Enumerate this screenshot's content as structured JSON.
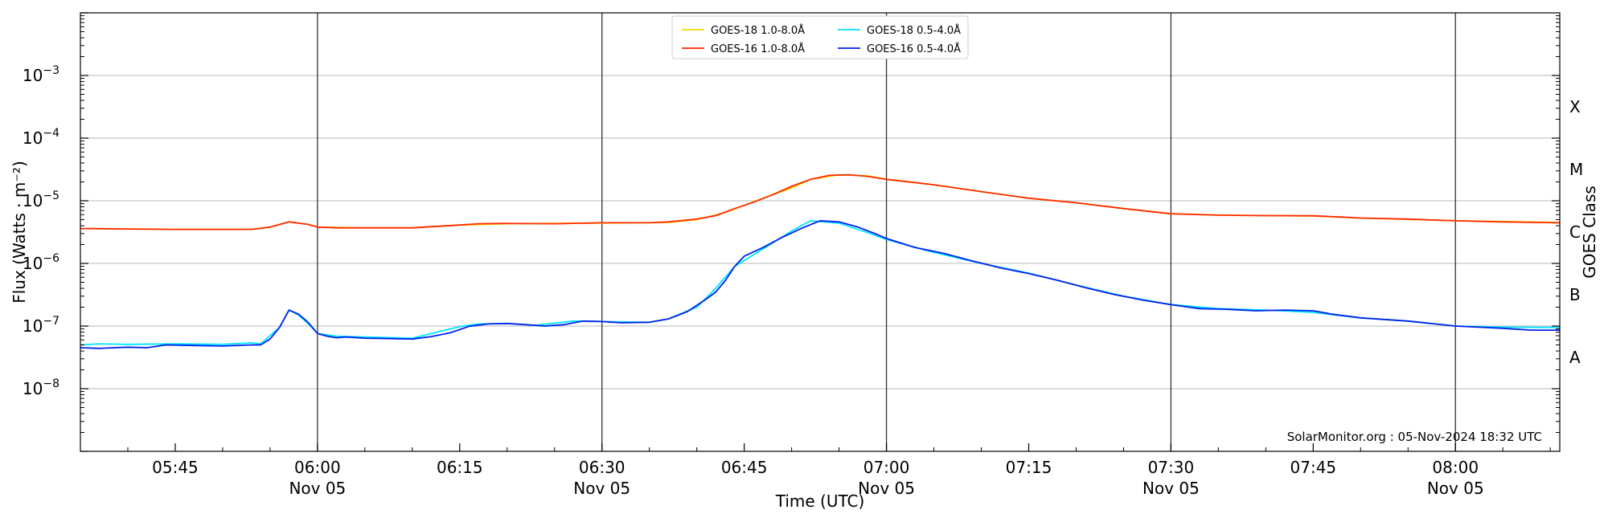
{
  "chart_data": {
    "type": "line",
    "xlabel": "Time (UTC)",
    "ylabel": "Flux (Watts · m⁻²)",
    "right_label": "GOES Class",
    "y_scale": "log",
    "ylim": [
      1e-09,
      0.01
    ],
    "xlim": [
      "05:35",
      "08:11"
    ],
    "y_ticks": [
      {
        "value": 1e-08,
        "base": "10",
        "exp": "−8"
      },
      {
        "value": 1e-07,
        "base": "10",
        "exp": "−7"
      },
      {
        "value": 1e-06,
        "base": "10",
        "exp": "−6"
      },
      {
        "value": 1e-05,
        "base": "10",
        "exp": "−5"
      },
      {
        "value": 0.0001,
        "base": "10",
        "exp": "−4"
      },
      {
        "value": 0.001,
        "base": "10",
        "exp": "−3"
      }
    ],
    "x_ticks": [
      {
        "time": "05:45",
        "label": "05:45",
        "date": ""
      },
      {
        "time": "06:00",
        "label": "06:00",
        "date": "Nov 05"
      },
      {
        "time": "06:15",
        "label": "06:15",
        "date": ""
      },
      {
        "time": "06:30",
        "label": "06:30",
        "date": "Nov 05"
      },
      {
        "time": "06:45",
        "label": "06:45",
        "date": ""
      },
      {
        "time": "07:00",
        "label": "07:00",
        "date": "Nov 05"
      },
      {
        "time": "07:15",
        "label": "07:15",
        "date": ""
      },
      {
        "time": "07:30",
        "label": "07:30",
        "date": "Nov 05"
      },
      {
        "time": "07:45",
        "label": "07:45",
        "date": ""
      },
      {
        "time": "08:00",
        "label": "08:00",
        "date": "Nov 05"
      }
    ],
    "vertical_lines": [
      "06:00",
      "06:30",
      "07:00",
      "07:30",
      "08:00"
    ],
    "goes_classes": [
      {
        "label": "X",
        "value": 0.000316
      },
      {
        "label": "M",
        "value": 3.16e-05
      },
      {
        "label": "C",
        "value": 3.16e-06
      },
      {
        "label": "B",
        "value": 3.16e-07
      },
      {
        "label": "A",
        "value": 3.16e-08
      }
    ],
    "grid": true,
    "legend_position": "top-center",
    "credit": "SolarMonitor.org : 05-Nov-2024 18:32 UTC",
    "series": [
      {
        "name": "GOES-18 1.0-8.0Å",
        "color": "#ffd700",
        "points": [
          [
            "05:35",
            3.6e-06
          ],
          [
            "05:45",
            3.5e-06
          ],
          [
            "05:53",
            3.5e-06
          ],
          [
            "05:55",
            3.8e-06
          ],
          [
            "05:57",
            4.6e-06
          ],
          [
            "05:59",
            4.2e-06
          ],
          [
            "06:00",
            3.8e-06
          ],
          [
            "06:05",
            3.7e-06
          ],
          [
            "06:10",
            3.7e-06
          ],
          [
            "06:15",
            4.1e-06
          ],
          [
            "06:20",
            4.3e-06
          ],
          [
            "06:30",
            4.4e-06
          ],
          [
            "06:37",
            4.5e-06
          ],
          [
            "06:40",
            5e-06
          ],
          [
            "06:43",
            6.5e-06
          ],
          [
            "06:47",
            1.1e-05
          ],
          [
            "06:50",
            1.6e-05
          ],
          [
            "06:52",
            2.2e-05
          ],
          [
            "06:55",
            2.6e-05
          ],
          [
            "06:58",
            2.5e-05
          ],
          [
            "07:00",
            2.2e-05
          ],
          [
            "07:05",
            1.8e-05
          ],
          [
            "07:10",
            1.4e-05
          ],
          [
            "07:15",
            1.1e-05
          ],
          [
            "07:20",
            9.3e-06
          ],
          [
            "07:25",
            7.5e-06
          ],
          [
            "07:30",
            6.2e-06
          ],
          [
            "07:35",
            5.9e-06
          ],
          [
            "07:40",
            5.8e-06
          ],
          [
            "07:45",
            5.7e-06
          ],
          [
            "07:50",
            5.3e-06
          ],
          [
            "08:00",
            4.8e-06
          ],
          [
            "08:11",
            4.5e-06
          ]
        ]
      },
      {
        "name": "GOES-18 0.5-4.0Å",
        "color": "#00e5ff",
        "points": [
          [
            "05:35",
            5e-08
          ],
          [
            "05:37",
            5.2e-08
          ],
          [
            "05:40",
            5.1e-08
          ],
          [
            "05:45",
            5.2e-08
          ],
          [
            "05:50",
            5.1e-08
          ],
          [
            "05:53",
            5.4e-08
          ],
          [
            "05:54",
            5.2e-08
          ],
          [
            "05:56",
            9.5e-08
          ],
          [
            "05:57",
            1.8e-07
          ],
          [
            "05:58",
            1.5e-07
          ],
          [
            "05:59",
            1.1e-07
          ],
          [
            "06:00",
            7.6e-08
          ],
          [
            "06:02",
            6.9e-08
          ],
          [
            "06:05",
            6.7e-08
          ],
          [
            "06:10",
            6.4e-08
          ],
          [
            "06:15",
            9.8e-08
          ],
          [
            "06:17",
            1.08e-07
          ],
          [
            "06:20",
            1.1e-07
          ],
          [
            "06:23",
            1.03e-07
          ],
          [
            "06:27",
            1.2e-07
          ],
          [
            "06:30",
            1.18e-07
          ],
          [
            "06:35",
            1.15e-07
          ],
          [
            "06:37",
            1.3e-07
          ],
          [
            "06:40",
            2e-07
          ],
          [
            "06:42",
            4e-07
          ],
          [
            "06:44",
            9e-07
          ],
          [
            "06:47",
            1.7e-06
          ],
          [
            "06:50",
            3.3e-06
          ],
          [
            "06:52",
            4.8e-06
          ],
          [
            "06:55",
            4.4e-06
          ],
          [
            "06:58",
            3.1e-06
          ],
          [
            "07:00",
            2.4e-06
          ],
          [
            "07:05",
            1.5e-06
          ],
          [
            "07:10",
            1e-06
          ],
          [
            "07:15",
            7e-07
          ],
          [
            "07:20",
            4.5e-07
          ],
          [
            "07:25",
            3e-07
          ],
          [
            "07:30",
            2.2e-07
          ],
          [
            "07:35",
            1.9e-07
          ],
          [
            "07:40",
            1.8e-07
          ],
          [
            "07:45",
            1.65e-07
          ],
          [
            "07:50",
            1.35e-07
          ],
          [
            "07:55",
            1.2e-07
          ],
          [
            "08:00",
            1e-07
          ],
          [
            "08:05",
            9.6e-08
          ],
          [
            "08:11",
            9.5e-08
          ]
        ]
      },
      {
        "name": "GOES-16 1.0-8.0Å",
        "color": "#ff2a00",
        "points": [
          [
            "05:35",
            3.6e-06
          ],
          [
            "05:40",
            3.55e-06
          ],
          [
            "05:45",
            3.5e-06
          ],
          [
            "05:50",
            3.5e-06
          ],
          [
            "05:53",
            3.5e-06
          ],
          [
            "05:55",
            3.8e-06
          ],
          [
            "05:57",
            4.6e-06
          ],
          [
            "05:59",
            4.2e-06
          ],
          [
            "06:00",
            3.8e-06
          ],
          [
            "06:02",
            3.7e-06
          ],
          [
            "06:05",
            3.7e-06
          ],
          [
            "06:10",
            3.7e-06
          ],
          [
            "06:15",
            4.1e-06
          ],
          [
            "06:17",
            4.3e-06
          ],
          [
            "06:20",
            4.35e-06
          ],
          [
            "06:25",
            4.3e-06
          ],
          [
            "06:30",
            4.45e-06
          ],
          [
            "06:35",
            4.45e-06
          ],
          [
            "06:37",
            4.6e-06
          ],
          [
            "06:40",
            5.1e-06
          ],
          [
            "06:42",
            5.8e-06
          ],
          [
            "06:44",
            7.5e-06
          ],
          [
            "06:46",
            9.5e-06
          ],
          [
            "06:48",
            1.25e-05
          ],
          [
            "06:50",
            1.7e-05
          ],
          [
            "06:52",
            2.2e-05
          ],
          [
            "06:54",
            2.55e-05
          ],
          [
            "06:56",
            2.6e-05
          ],
          [
            "06:58",
            2.45e-05
          ],
          [
            "07:00",
            2.2e-05
          ],
          [
            "07:05",
            1.8e-05
          ],
          [
            "07:10",
            1.4e-05
          ],
          [
            "07:15",
            1.1e-05
          ],
          [
            "07:20",
            9.3e-06
          ],
          [
            "07:25",
            7.5e-06
          ],
          [
            "07:30",
            6.2e-06
          ],
          [
            "07:35",
            5.9e-06
          ],
          [
            "07:40",
            5.8e-06
          ],
          [
            "07:45",
            5.75e-06
          ],
          [
            "07:48",
            5.5e-06
          ],
          [
            "07:50",
            5.3e-06
          ],
          [
            "07:55",
            5.1e-06
          ],
          [
            "08:00",
            4.8e-06
          ],
          [
            "08:05",
            4.6e-06
          ],
          [
            "08:11",
            4.45e-06
          ]
        ]
      },
      {
        "name": "GOES-16 0.5-4.0Å",
        "color": "#0022ee",
        "points": [
          [
            "05:35",
            4.5e-08
          ],
          [
            "05:37",
            4.4e-08
          ],
          [
            "05:40",
            4.6e-08
          ],
          [
            "05:42",
            4.5e-08
          ],
          [
            "05:44",
            5e-08
          ],
          [
            "05:47",
            4.9e-08
          ],
          [
            "05:50",
            4.8e-08
          ],
          [
            "05:53",
            5e-08
          ],
          [
            "05:54",
            5e-08
          ],
          [
            "05:55",
            6.2e-08
          ],
          [
            "05:56",
            9.5e-08
          ],
          [
            "05:57",
            1.8e-07
          ],
          [
            "05:58",
            1.55e-07
          ],
          [
            "05:59",
            1.15e-07
          ],
          [
            "06:00",
            7.6e-08
          ],
          [
            "06:01",
            6.9e-08
          ],
          [
            "06:02",
            6.5e-08
          ],
          [
            "06:03",
            6.7e-08
          ],
          [
            "06:05",
            6.4e-08
          ],
          [
            "06:08",
            6.3e-08
          ],
          [
            "06:10",
            6.2e-08
          ],
          [
            "06:12",
            6.8e-08
          ],
          [
            "06:14",
            7.8e-08
          ],
          [
            "06:16",
            9.9e-08
          ],
          [
            "06:18",
            1.08e-07
          ],
          [
            "06:20",
            1.1e-07
          ],
          [
            "06:22",
            1.05e-07
          ],
          [
            "06:24",
            1e-07
          ],
          [
            "06:26",
            1.05e-07
          ],
          [
            "06:28",
            1.2e-07
          ],
          [
            "06:30",
            1.18e-07
          ],
          [
            "06:32",
            1.13e-07
          ],
          [
            "06:35",
            1.15e-07
          ],
          [
            "06:37",
            1.3e-07
          ],
          [
            "06:39",
            1.7e-07
          ],
          [
            "06:41",
            2.7e-07
          ],
          [
            "06:42",
            3.5e-07
          ],
          [
            "06:43",
            5.3e-07
          ],
          [
            "06:44",
            9e-07
          ],
          [
            "06:45",
            1.3e-06
          ],
          [
            "06:47",
            1.8e-06
          ],
          [
            "06:49",
            2.6e-06
          ],
          [
            "06:51",
            3.6e-06
          ],
          [
            "06:53",
            4.8e-06
          ],
          [
            "06:55",
            4.6e-06
          ],
          [
            "06:57",
            3.8e-06
          ],
          [
            "06:59",
            2.9e-06
          ],
          [
            "07:00",
            2.5e-06
          ],
          [
            "07:03",
            1.8e-06
          ],
          [
            "07:06",
            1.45e-06
          ],
          [
            "07:09",
            1.1e-06
          ],
          [
            "07:12",
            8.5e-07
          ],
          [
            "07:15",
            6.9e-07
          ],
          [
            "07:18",
            5.4e-07
          ],
          [
            "07:21",
            4.1e-07
          ],
          [
            "07:24",
            3.2e-07
          ],
          [
            "07:27",
            2.6e-07
          ],
          [
            "07:30",
            2.2e-07
          ],
          [
            "07:33",
            1.9e-07
          ],
          [
            "07:36",
            1.85e-07
          ],
          [
            "07:39",
            1.75e-07
          ],
          [
            "07:42",
            1.8e-07
          ],
          [
            "07:45",
            1.75e-07
          ],
          [
            "07:47",
            1.55e-07
          ],
          [
            "07:50",
            1.35e-07
          ],
          [
            "07:55",
            1.2e-07
          ],
          [
            "08:00",
            1e-07
          ],
          [
            "08:05",
            9.2e-08
          ],
          [
            "08:08",
            8.6e-08
          ],
          [
            "08:11",
            8.6e-08
          ]
        ]
      }
    ]
  }
}
